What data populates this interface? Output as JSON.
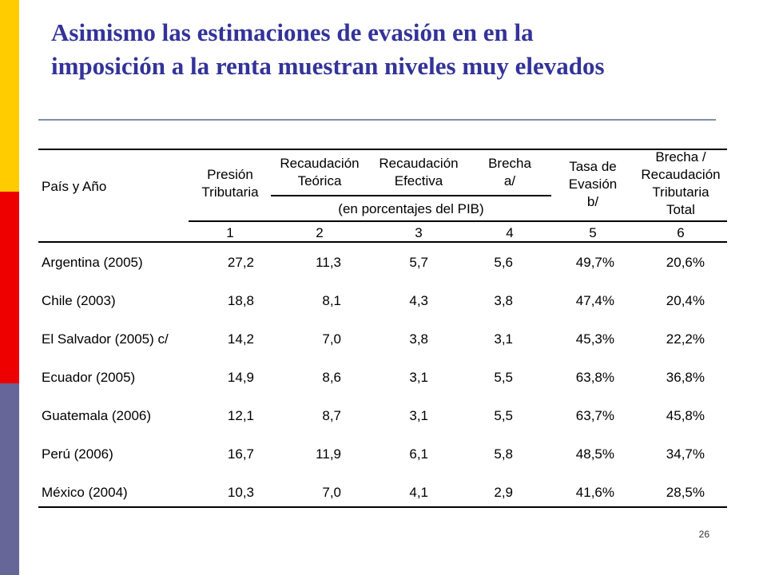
{
  "slide": {
    "title_line1": "Asimismo las estimaciones de  evasión en  en la",
    "title_line2": "imposición  a la renta muestran niveles muy elevados",
    "page_number": "26",
    "colors": {
      "title": "#333399",
      "bar_yellow": "#ffcc00",
      "bar_red": "#ee0000",
      "bar_blue": "#666699"
    }
  },
  "table": {
    "headers": {
      "country": "País y Año",
      "col1": [
        "Presión",
        "Tributaria"
      ],
      "col2": [
        "Recaudación",
        "Teórica"
      ],
      "col3": [
        "Recaudación",
        "Efectiva"
      ],
      "col4": [
        "Brecha",
        "a/"
      ],
      "col5": [
        "Tasa de",
        "Evasión",
        "b/"
      ],
      "col6": [
        "Brecha /",
        "Recaudación",
        "Tributaria",
        "Total"
      ],
      "subheader": "(en porcentajes del PIB)",
      "numbers": [
        "1",
        "2",
        "3",
        "4",
        "5",
        "6"
      ]
    },
    "rows": [
      {
        "country": "Argentina (2005)",
        "values": [
          "27,2",
          "11,3",
          "5,7",
          "5,6",
          "49,7%",
          "20,6%"
        ]
      },
      {
        "country": "Chile (2003)",
        "values": [
          "18,8",
          "8,1",
          "4,3",
          "3,8",
          "47,4%",
          "20,4%"
        ]
      },
      {
        "country": "El Salvador (2005) c/",
        "values": [
          "14,2",
          "7,0",
          "3,8",
          "3,1",
          "45,3%",
          "22,2%"
        ]
      },
      {
        "country": "Ecuador (2005)",
        "values": [
          "14,9",
          "8,6",
          "3,1",
          "5,5",
          "63,8%",
          "36,8%"
        ]
      },
      {
        "country": "Guatemala (2006)",
        "values": [
          "12,1",
          "8,7",
          "3,1",
          "5,5",
          "63,7%",
          "45,8%"
        ]
      },
      {
        "country": "Perú (2006)",
        "values": [
          "16,7",
          "11,9",
          "6,1",
          "5,8",
          "48,5%",
          "34,7%"
        ]
      },
      {
        "country": "México (2004)",
        "values": [
          "10,3",
          "7,0",
          "4,1",
          "2,9",
          "41,6%",
          "28,5%"
        ]
      }
    ]
  }
}
